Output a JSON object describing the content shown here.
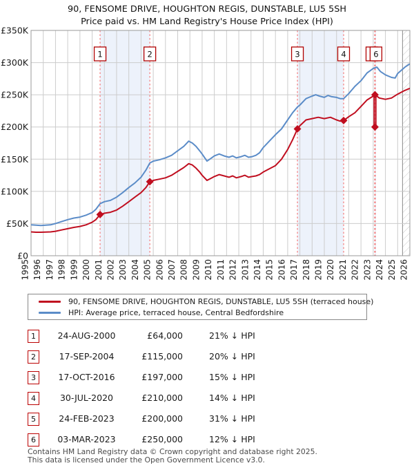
{
  "title": {
    "line1": "90, FENSOME DRIVE, HOUGHTON REGIS, DUNSTABLE, LU5 5SH",
    "line2": "Price paid vs. HM Land Registry's House Price Index (HPI)"
  },
  "legend": {
    "series1": "90, FENSOME DRIVE, HOUGHTON REGIS, DUNSTABLE, LU5 5SH (terraced house)",
    "series2": "HPI: Average price, terraced house, Central Bedfordshire"
  },
  "sales_table": {
    "rows": [
      {
        "num": "1",
        "date": "24-AUG-2000",
        "price": "£64,000",
        "vs_hpi": "21% ↓ HPI"
      },
      {
        "num": "2",
        "date": "17-SEP-2004",
        "price": "£115,000",
        "vs_hpi": "20% ↓ HPI"
      },
      {
        "num": "3",
        "date": "17-OCT-2016",
        "price": "£197,000",
        "vs_hpi": "15% ↓ HPI"
      },
      {
        "num": "4",
        "date": "30-JUL-2020",
        "price": "£210,000",
        "vs_hpi": "14% ↓ HPI"
      },
      {
        "num": "5",
        "date": "24-FEB-2023",
        "price": "£200,000",
        "vs_hpi": "31% ↓ HPI"
      },
      {
        "num": "6",
        "date": "03-MAR-2023",
        "price": "£250,000",
        "vs_hpi": "12% ↓ HPI"
      }
    ]
  },
  "footer": {
    "line1": "Contains HM Land Registry data © Crown copyright and database right 2025.",
    "line2": "This data is licensed under the Open Government Licence v3.0."
  },
  "chart_data": {
    "type": "line",
    "title": "90, FENSOME DRIVE, HOUGHTON REGIS, DUNSTABLE, LU5 5SH — Price paid vs. HPI",
    "x_axis": {
      "min": 1995,
      "max": 2026,
      "ticks": [
        1995,
        1996,
        1997,
        1998,
        1999,
        2000,
        2001,
        2002,
        2003,
        2004,
        2005,
        2006,
        2007,
        2008,
        2009,
        2010,
        2011,
        2012,
        2013,
        2014,
        2015,
        2016,
        2017,
        2018,
        2019,
        2020,
        2021,
        2022,
        2023,
        2024,
        2025,
        2026
      ]
    },
    "y_axis": {
      "min": 0,
      "max": 350000,
      "unit": "GBP",
      "tick_values_k": [
        0,
        50,
        100,
        150,
        200,
        250,
        300,
        350
      ],
      "tick_labels": [
        "£0",
        "£50K",
        "£100K",
        "£150K",
        "£200K",
        "£250K",
        "£300K",
        "£350K"
      ]
    },
    "colors": {
      "price_paid": "#c00e1f",
      "hpi": "#5b8cc8",
      "grid": "#cccccc",
      "frame": "#999999",
      "band": "#edf2fb",
      "sale_dash": "#f47a7a",
      "marker_box_border": "#b00000",
      "hatch": "#c9c9c9",
      "hatch_edge": "#8a8a8a"
    },
    "grid": true,
    "legend_position": "below",
    "series": [
      {
        "name": "90, FENSOME DRIVE, HOUGHTON REGIS, DUNSTABLE, LU5 5SH (terraced house)",
        "color": "#c00e1f",
        "points_year_gbpk": [
          [
            1995.0,
            37
          ],
          [
            1995.4,
            36.5
          ],
          [
            1995.8,
            36.5
          ],
          [
            1996.2,
            36.8
          ],
          [
            1996.6,
            37
          ],
          [
            1997.0,
            38
          ],
          [
            1997.5,
            40
          ],
          [
            1998.0,
            42
          ],
          [
            1998.5,
            44
          ],
          [
            1999.0,
            45.5
          ],
          [
            1999.5,
            48
          ],
          [
            2000.0,
            52
          ],
          [
            2000.3,
            56
          ],
          [
            2000.65,
            64
          ],
          [
            2001.0,
            66
          ],
          [
            2001.5,
            67.5
          ],
          [
            2002.0,
            71
          ],
          [
            2002.5,
            77
          ],
          [
            2003.0,
            84
          ],
          [
            2003.5,
            91
          ],
          [
            2004.0,
            98
          ],
          [
            2004.4,
            106
          ],
          [
            2004.72,
            115
          ],
          [
            2005.0,
            117
          ],
          [
            2005.5,
            119
          ],
          [
            2006.0,
            121
          ],
          [
            2006.5,
            125
          ],
          [
            2007.0,
            131
          ],
          [
            2007.5,
            137
          ],
          [
            2007.9,
            143
          ],
          [
            2008.2,
            141
          ],
          [
            2008.5,
            136
          ],
          [
            2008.8,
            130
          ],
          [
            2009.0,
            125
          ],
          [
            2009.4,
            117
          ],
          [
            2009.7,
            120
          ],
          [
            2010.0,
            123
          ],
          [
            2010.4,
            126
          ],
          [
            2010.8,
            124
          ],
          [
            2011.2,
            122
          ],
          [
            2011.5,
            124
          ],
          [
            2011.8,
            121
          ],
          [
            2012.2,
            123
          ],
          [
            2012.5,
            125
          ],
          [
            2012.8,
            122
          ],
          [
            2013.1,
            123
          ],
          [
            2013.4,
            124
          ],
          [
            2013.7,
            126
          ],
          [
            2014.0,
            130
          ],
          [
            2014.5,
            135
          ],
          [
            2015.0,
            140
          ],
          [
            2015.5,
            150
          ],
          [
            2016.0,
            165
          ],
          [
            2016.4,
            180
          ],
          [
            2016.8,
            197
          ],
          [
            2017.0,
            202
          ],
          [
            2017.5,
            211
          ],
          [
            2018.0,
            213
          ],
          [
            2018.5,
            215
          ],
          [
            2019.0,
            213
          ],
          [
            2019.5,
            215
          ],
          [
            2020.0,
            211
          ],
          [
            2020.3,
            209
          ],
          [
            2020.58,
            210
          ],
          [
            2021.0,
            216
          ],
          [
            2021.5,
            222
          ],
          [
            2022.0,
            232
          ],
          [
            2022.5,
            242
          ],
          [
            2023.0,
            248
          ],
          [
            2023.14,
            250
          ],
          [
            2023.5,
            245
          ],
          [
            2024.0,
            243
          ],
          [
            2024.5,
            245
          ],
          [
            2025.0,
            251
          ],
          [
            2025.5,
            256
          ],
          [
            2026.0,
            260
          ]
        ]
      },
      {
        "name": "HPI: Average price, terraced house, Central Bedfordshire",
        "color": "#5b8cc8",
        "points_year_gbpk": [
          [
            1995.0,
            48
          ],
          [
            1995.4,
            47.5
          ],
          [
            1995.8,
            47
          ],
          [
            1996.2,
            47.5
          ],
          [
            1996.6,
            48
          ],
          [
            1997.0,
            50
          ],
          [
            1997.5,
            53
          ],
          [
            1998.0,
            56
          ],
          [
            1998.5,
            58.5
          ],
          [
            1999.0,
            60
          ],
          [
            1999.5,
            63
          ],
          [
            2000.0,
            67
          ],
          [
            2000.3,
            72
          ],
          [
            2000.65,
            81
          ],
          [
            2001.0,
            84
          ],
          [
            2001.5,
            86
          ],
          [
            2002.0,
            91
          ],
          [
            2002.5,
            98
          ],
          [
            2003.0,
            106
          ],
          [
            2003.5,
            113
          ],
          [
            2004.0,
            122
          ],
          [
            2004.4,
            133
          ],
          [
            2004.72,
            144
          ],
          [
            2005.0,
            147
          ],
          [
            2005.5,
            149
          ],
          [
            2006.0,
            152
          ],
          [
            2006.5,
            156
          ],
          [
            2007.0,
            163
          ],
          [
            2007.5,
            170
          ],
          [
            2007.9,
            178
          ],
          [
            2008.2,
            175
          ],
          [
            2008.5,
            170
          ],
          [
            2008.8,
            163
          ],
          [
            2009.0,
            158
          ],
          [
            2009.4,
            147
          ],
          [
            2009.7,
            151
          ],
          [
            2010.0,
            155
          ],
          [
            2010.4,
            158
          ],
          [
            2010.8,
            155
          ],
          [
            2011.2,
            153
          ],
          [
            2011.5,
            155
          ],
          [
            2011.8,
            152
          ],
          [
            2012.2,
            154
          ],
          [
            2012.5,
            156
          ],
          [
            2012.8,
            153
          ],
          [
            2013.1,
            154
          ],
          [
            2013.4,
            156
          ],
          [
            2013.7,
            160
          ],
          [
            2014.0,
            168
          ],
          [
            2014.5,
            178
          ],
          [
            2015.0,
            188
          ],
          [
            2015.5,
            197
          ],
          [
            2016.0,
            211
          ],
          [
            2016.4,
            222
          ],
          [
            2016.8,
            231
          ],
          [
            2017.0,
            234
          ],
          [
            2017.5,
            244
          ],
          [
            2018.0,
            248
          ],
          [
            2018.3,
            250
          ],
          [
            2018.6,
            248
          ],
          [
            2019.0,
            246
          ],
          [
            2019.3,
            249
          ],
          [
            2019.6,
            247
          ],
          [
            2020.0,
            246
          ],
          [
            2020.3,
            244
          ],
          [
            2020.58,
            244
          ],
          [
            2021.0,
            252
          ],
          [
            2021.5,
            263
          ],
          [
            2022.0,
            272
          ],
          [
            2022.5,
            284
          ],
          [
            2022.8,
            288
          ],
          [
            2023.0,
            291
          ],
          [
            2023.3,
            293
          ],
          [
            2023.6,
            286
          ],
          [
            2024.0,
            281
          ],
          [
            2024.5,
            277
          ],
          [
            2024.8,
            276
          ],
          [
            2025.0,
            283
          ],
          [
            2025.3,
            288
          ],
          [
            2025.6,
            293
          ],
          [
            2026.0,
            298
          ]
        ]
      }
    ],
    "sales_markers": [
      {
        "n": "1",
        "year": 2000.65,
        "price_k": 64,
        "dot": true
      },
      {
        "n": "2",
        "year": 2004.72,
        "price_k": 115,
        "dot": true
      },
      {
        "n": "3",
        "year": 2016.8,
        "price_k": 197,
        "dot": true
      },
      {
        "n": "4",
        "year": 2020.58,
        "price_k": 210,
        "dot": true
      },
      {
        "n": "5",
        "year": 2023.12,
        "price_k": 200,
        "dot": false,
        "box_dx": -4
      },
      {
        "n": "6",
        "year": 2023.17,
        "price_k": 250,
        "dot": false,
        "box_dx": 1
      }
    ],
    "drop_segment": {
      "year": 2023.145,
      "top_k": 250,
      "bottom_k": 200
    },
    "shaded_bands_years": [
      [
        2000.65,
        2004.72
      ],
      [
        2016.8,
        2020.58
      ],
      [
        2023.12,
        2023.17
      ]
    ],
    "future_hatch_years": [
      2025.4,
      2026
    ]
  }
}
